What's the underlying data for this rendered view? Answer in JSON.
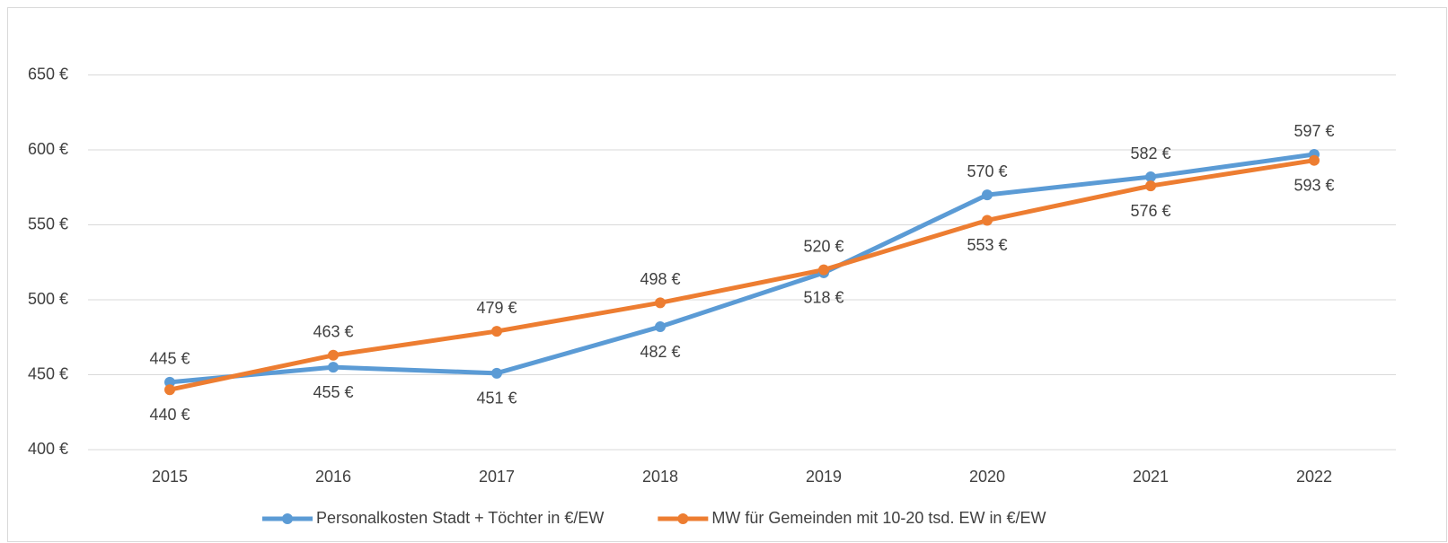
{
  "chart_data": {
    "type": "line",
    "categories": [
      "2015",
      "2016",
      "2017",
      "2018",
      "2019",
      "2020",
      "2021",
      "2022"
    ],
    "series": [
      {
        "name": "Personalkosten Stadt + Töchter in €/EW",
        "color": "#5b9bd5",
        "values": [
          445,
          455,
          451,
          482,
          518,
          570,
          582,
          597
        ],
        "value_labels": [
          "445 €",
          "455 €",
          "451 €",
          "482 €",
          "518 €",
          "570 €",
          "582 €",
          "597 €"
        ]
      },
      {
        "name": "MW für Gemeinden mit 10-20 tsd. EW in €/EW",
        "color": "#ed7d31",
        "values": [
          440,
          463,
          479,
          498,
          520,
          553,
          576,
          593
        ],
        "value_labels": [
          "440 €",
          "463 €",
          "479 €",
          "498 €",
          "520 €",
          "553 €",
          "576 €",
          "593 €"
        ]
      }
    ],
    "ylim": [
      400,
      700
    ],
    "yticks": [
      {
        "value": 400,
        "label": "400 €"
      },
      {
        "value": 450,
        "label": "450 €"
      },
      {
        "value": 500,
        "label": "500 €"
      },
      {
        "value": 550,
        "label": "550 €"
      },
      {
        "value": 600,
        "label": "600 €"
      },
      {
        "value": 650,
        "label": "650 €"
      }
    ],
    "grid": true,
    "legend": "bottom"
  }
}
